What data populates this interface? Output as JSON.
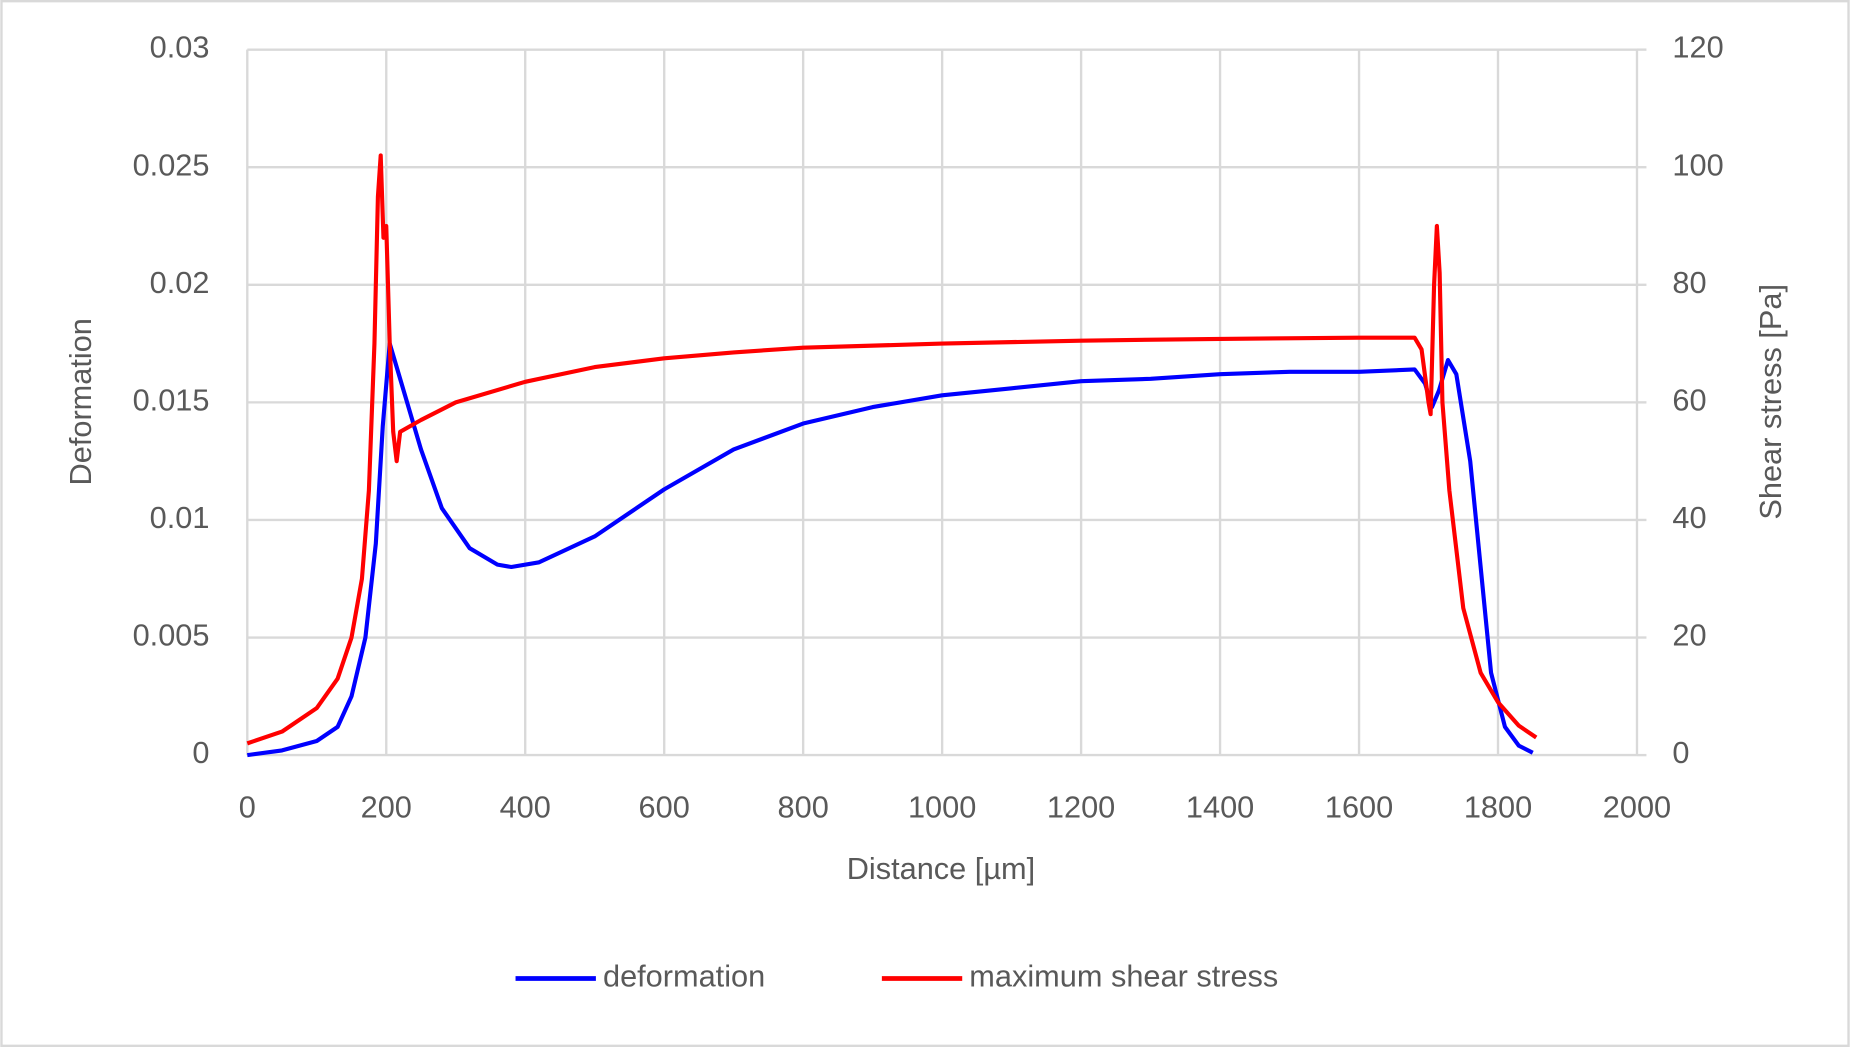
{
  "chart_data": {
    "type": "line",
    "x_label": "Distance [µm]",
    "y_label": "Deformation",
    "y2_label": "Shear stress [Pa]",
    "xlim": [
      0,
      2000
    ],
    "xticks": [
      0,
      200,
      400,
      600,
      800,
      1000,
      1200,
      1400,
      1600,
      1800,
      2000
    ],
    "ylim": [
      0,
      0.03
    ],
    "yticks": [
      0,
      0.005,
      0.01,
      0.015,
      0.02,
      0.025,
      0.03
    ],
    "y2lim": [
      0,
      120
    ],
    "y2ticks": [
      0,
      20,
      40,
      60,
      80,
      100,
      120
    ],
    "grid": true,
    "legend": "bottom",
    "series": [
      {
        "name": "deformation",
        "color": "#0000ff",
        "x": [
          0,
          50,
          100,
          130,
          150,
          170,
          185,
          195,
          205,
          220,
          250,
          280,
          320,
          360,
          380,
          420,
          500,
          600,
          700,
          800,
          900,
          1000,
          1100,
          1200,
          1300,
          1400,
          1500,
          1600,
          1680,
          1695,
          1705,
          1715,
          1728,
          1740,
          1760,
          1775,
          1790,
          1810,
          1830,
          1850
        ],
        "values": [
          0,
          0.0002,
          0.0006,
          0.0012,
          0.0025,
          0.005,
          0.009,
          0.014,
          0.0175,
          0.016,
          0.013,
          0.0105,
          0.0088,
          0.0081,
          0.008,
          0.0082,
          0.0093,
          0.0113,
          0.013,
          0.0141,
          0.0148,
          0.0153,
          0.0156,
          0.0159,
          0.016,
          0.0162,
          0.0163,
          0.0163,
          0.0164,
          0.0158,
          0.0148,
          0.0155,
          0.0168,
          0.0162,
          0.0125,
          0.008,
          0.0035,
          0.0012,
          0.0004,
          0.0001
        ]
      },
      {
        "name": "maximum shear stress",
        "color": "#ff0000",
        "axis": "y2",
        "x": [
          0,
          50,
          100,
          130,
          150,
          165,
          175,
          183,
          188,
          192,
          196,
          200,
          205,
          210,
          215,
          220,
          250,
          300,
          400,
          500,
          600,
          700,
          800,
          1000,
          1200,
          1400,
          1600,
          1680,
          1690,
          1700,
          1703,
          1708,
          1712,
          1716,
          1720,
          1730,
          1750,
          1775,
          1800,
          1830,
          1855
        ],
        "values": [
          2,
          4,
          8,
          13,
          20,
          30,
          45,
          70,
          95,
          102,
          88,
          90,
          70,
          55,
          50,
          55,
          57,
          60,
          63.5,
          66,
          67.5,
          68.5,
          69.3,
          70,
          70.5,
          70.8,
          71,
          71,
          69,
          60,
          58,
          80,
          90,
          82,
          60,
          45,
          25,
          14,
          9,
          5,
          3
        ]
      }
    ]
  }
}
